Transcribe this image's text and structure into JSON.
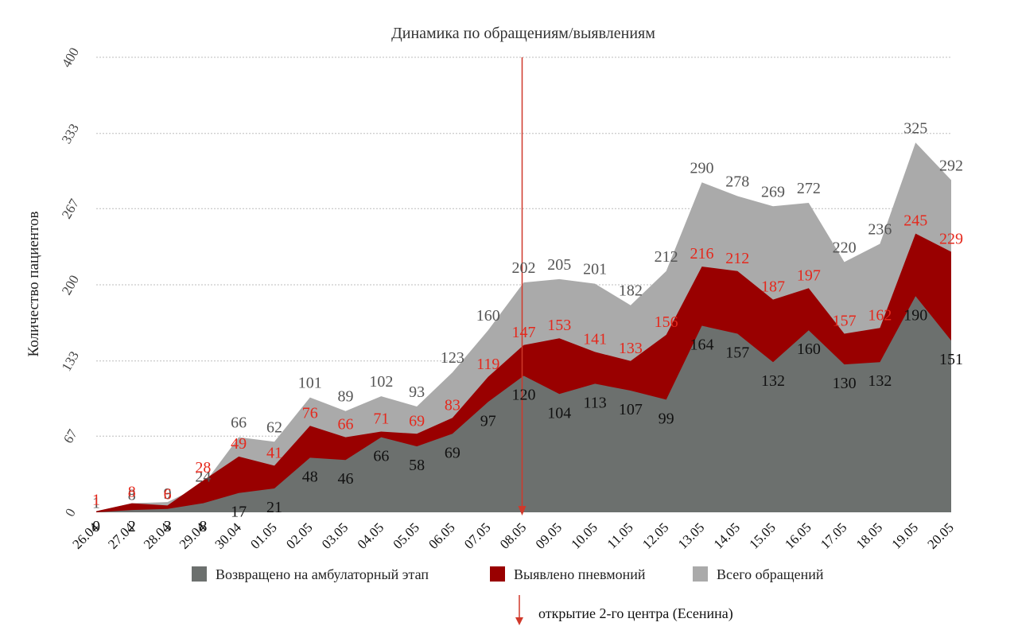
{
  "chart_data": {
    "type": "area",
    "title": "Динамика по обращениям/выявлениям",
    "ylabel": "Количество пациентов",
    "xlabel": "",
    "ylim": [
      0,
      400
    ],
    "yticks": [
      "0",
      "67",
      "133",
      "200",
      "267",
      "333",
      "400"
    ],
    "ytick_values": [
      0,
      67,
      133,
      200,
      267,
      333,
      400
    ],
    "grid": true,
    "legend_position": "bottom",
    "categories": [
      "26.04",
      "27.04",
      "28.04",
      "29.04",
      "30.04",
      "01.05",
      "02.05",
      "03.05",
      "04.05",
      "05.05",
      "06.05",
      "07.05",
      "08.05",
      "09.05",
      "10.05",
      "11.05",
      "12.05",
      "13.05",
      "14.05",
      "15.05",
      "16.05",
      "17.05",
      "18.05",
      "19.05",
      "20.05"
    ],
    "series": [
      {
        "name": "Всего обращений",
        "color": "#aaaaaa",
        "label_color": "#555555",
        "values": [
          1,
          8,
          9,
          24,
          66,
          62,
          101,
          89,
          102,
          93,
          123,
          160,
          202,
          205,
          201,
          182,
          212,
          290,
          278,
          269,
          272,
          220,
          236,
          325,
          292
        ]
      },
      {
        "name": "Выявлено пневмоний",
        "color": "#990000",
        "label_color": "#e5281c",
        "values": [
          1,
          8,
          6,
          28,
          49,
          41,
          76,
          66,
          71,
          69,
          83,
          119,
          147,
          153,
          141,
          133,
          156,
          216,
          212,
          187,
          197,
          157,
          162,
          245,
          229
        ]
      },
      {
        "name": "Возвращено на амбулаторный этап",
        "color": "#6c706e",
        "label_color": "#111111",
        "values": [
          0,
          2,
          3,
          8,
          17,
          21,
          48,
          46,
          66,
          58,
          69,
          97,
          120,
          104,
          113,
          107,
          99,
          164,
          157,
          132,
          160,
          130,
          132,
          190,
          151
        ]
      }
    ],
    "legend": [
      "Возвращено на амбулаторный этап",
      "Выявлено пневмоний",
      "Всего обращений"
    ],
    "annotation": {
      "label": "открытие 2-го центра (Есенина)",
      "category": "08.05",
      "color": "#d0392b"
    }
  }
}
